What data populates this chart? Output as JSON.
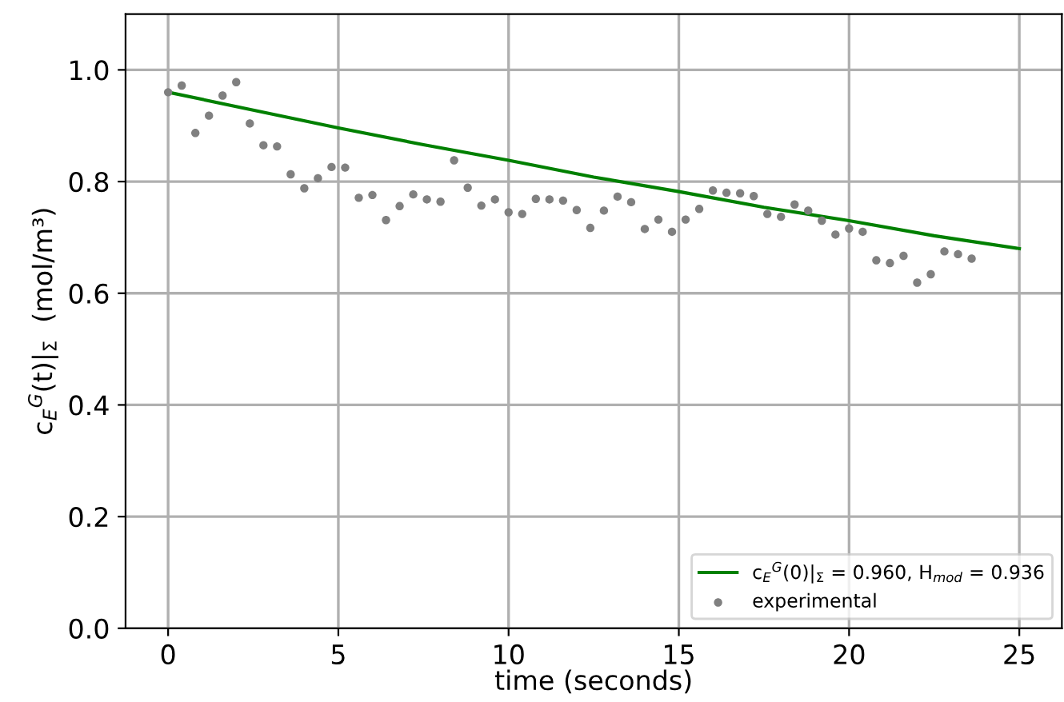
{
  "chart_data": {
    "type": "scatter",
    "xlabel": "time (seconds)",
    "ylabel": "c$_{E}$$^{G}$(t)|$_{Σ}$  (mol/m³)",
    "series": [
      {
        "name": "c$_{E}$$^{G}$(0)|$_{Σ}$ = 0.960, H$_{mod}$ = 0.936",
        "type": "line",
        "marker": "none",
        "color": "#008000",
        "x": [
          0,
          2.5,
          5,
          7.5,
          10,
          12.5,
          15,
          17.5,
          20,
          22.5,
          25
        ],
        "values": [
          0.96,
          0.928,
          0.896,
          0.866,
          0.838,
          0.808,
          0.782,
          0.754,
          0.73,
          0.703,
          0.68
        ]
      },
      {
        "name": "experimental",
        "color": "#808080",
        "x": [
          0,
          0.4,
          0.8,
          1.2,
          1.6,
          2.0,
          2.4,
          2.8,
          3.2,
          3.6,
          4.0,
          4.4,
          4.8,
          5.2,
          5.6,
          6.0,
          6.4,
          6.8,
          7.2,
          7.6,
          8.0,
          8.4,
          8.8,
          9.2,
          9.6,
          10.0,
          10.4,
          10.8,
          11.2,
          11.6,
          12.0,
          12.4,
          12.8,
          13.2,
          13.6,
          14.0,
          14.4,
          14.8,
          15.2,
          15.6,
          16.0,
          16.4,
          16.8,
          17.2,
          17.6,
          18.0,
          18.4,
          18.8,
          19.2,
          19.6,
          20.0,
          20.4,
          20.8,
          21.2,
          21.6,
          22.0,
          22.4,
          22.8,
          23.2,
          23.6
        ],
        "values": [
          0.96,
          0.972,
          0.887,
          0.918,
          0.954,
          0.978,
          0.904,
          0.865,
          0.863,
          0.813,
          0.788,
          0.806,
          0.826,
          0.825,
          0.771,
          0.776,
          0.731,
          0.756,
          0.777,
          0.768,
          0.764,
          0.838,
          0.789,
          0.757,
          0.768,
          0.745,
          0.742,
          0.769,
          0.768,
          0.766,
          0.749,
          0.717,
          0.748,
          0.773,
          0.763,
          0.715,
          0.732,
          0.71,
          0.732,
          0.751,
          0.784,
          0.78,
          0.779,
          0.774,
          0.742,
          0.737,
          0.759,
          0.748,
          0.73,
          0.705,
          0.716,
          0.71,
          0.659,
          0.654,
          0.667,
          0.619,
          0.634,
          0.675,
          0.67,
          0.662
        ]
      }
    ],
    "xlim": [
      -1.25,
      26.25
    ],
    "xticks": [
      0,
      5,
      10,
      15,
      20,
      25
    ],
    "ylim": [
      0,
      1.1
    ],
    "yticks": [
      {
        "value": 0,
        "label": "0.0"
      },
      0.2,
      0.4,
      0.6,
      0.8,
      {
        "value": 1,
        "label": "1.0"
      }
    ],
    "grid": true,
    "legend": "bottom right",
    "marker": "circle"
  }
}
